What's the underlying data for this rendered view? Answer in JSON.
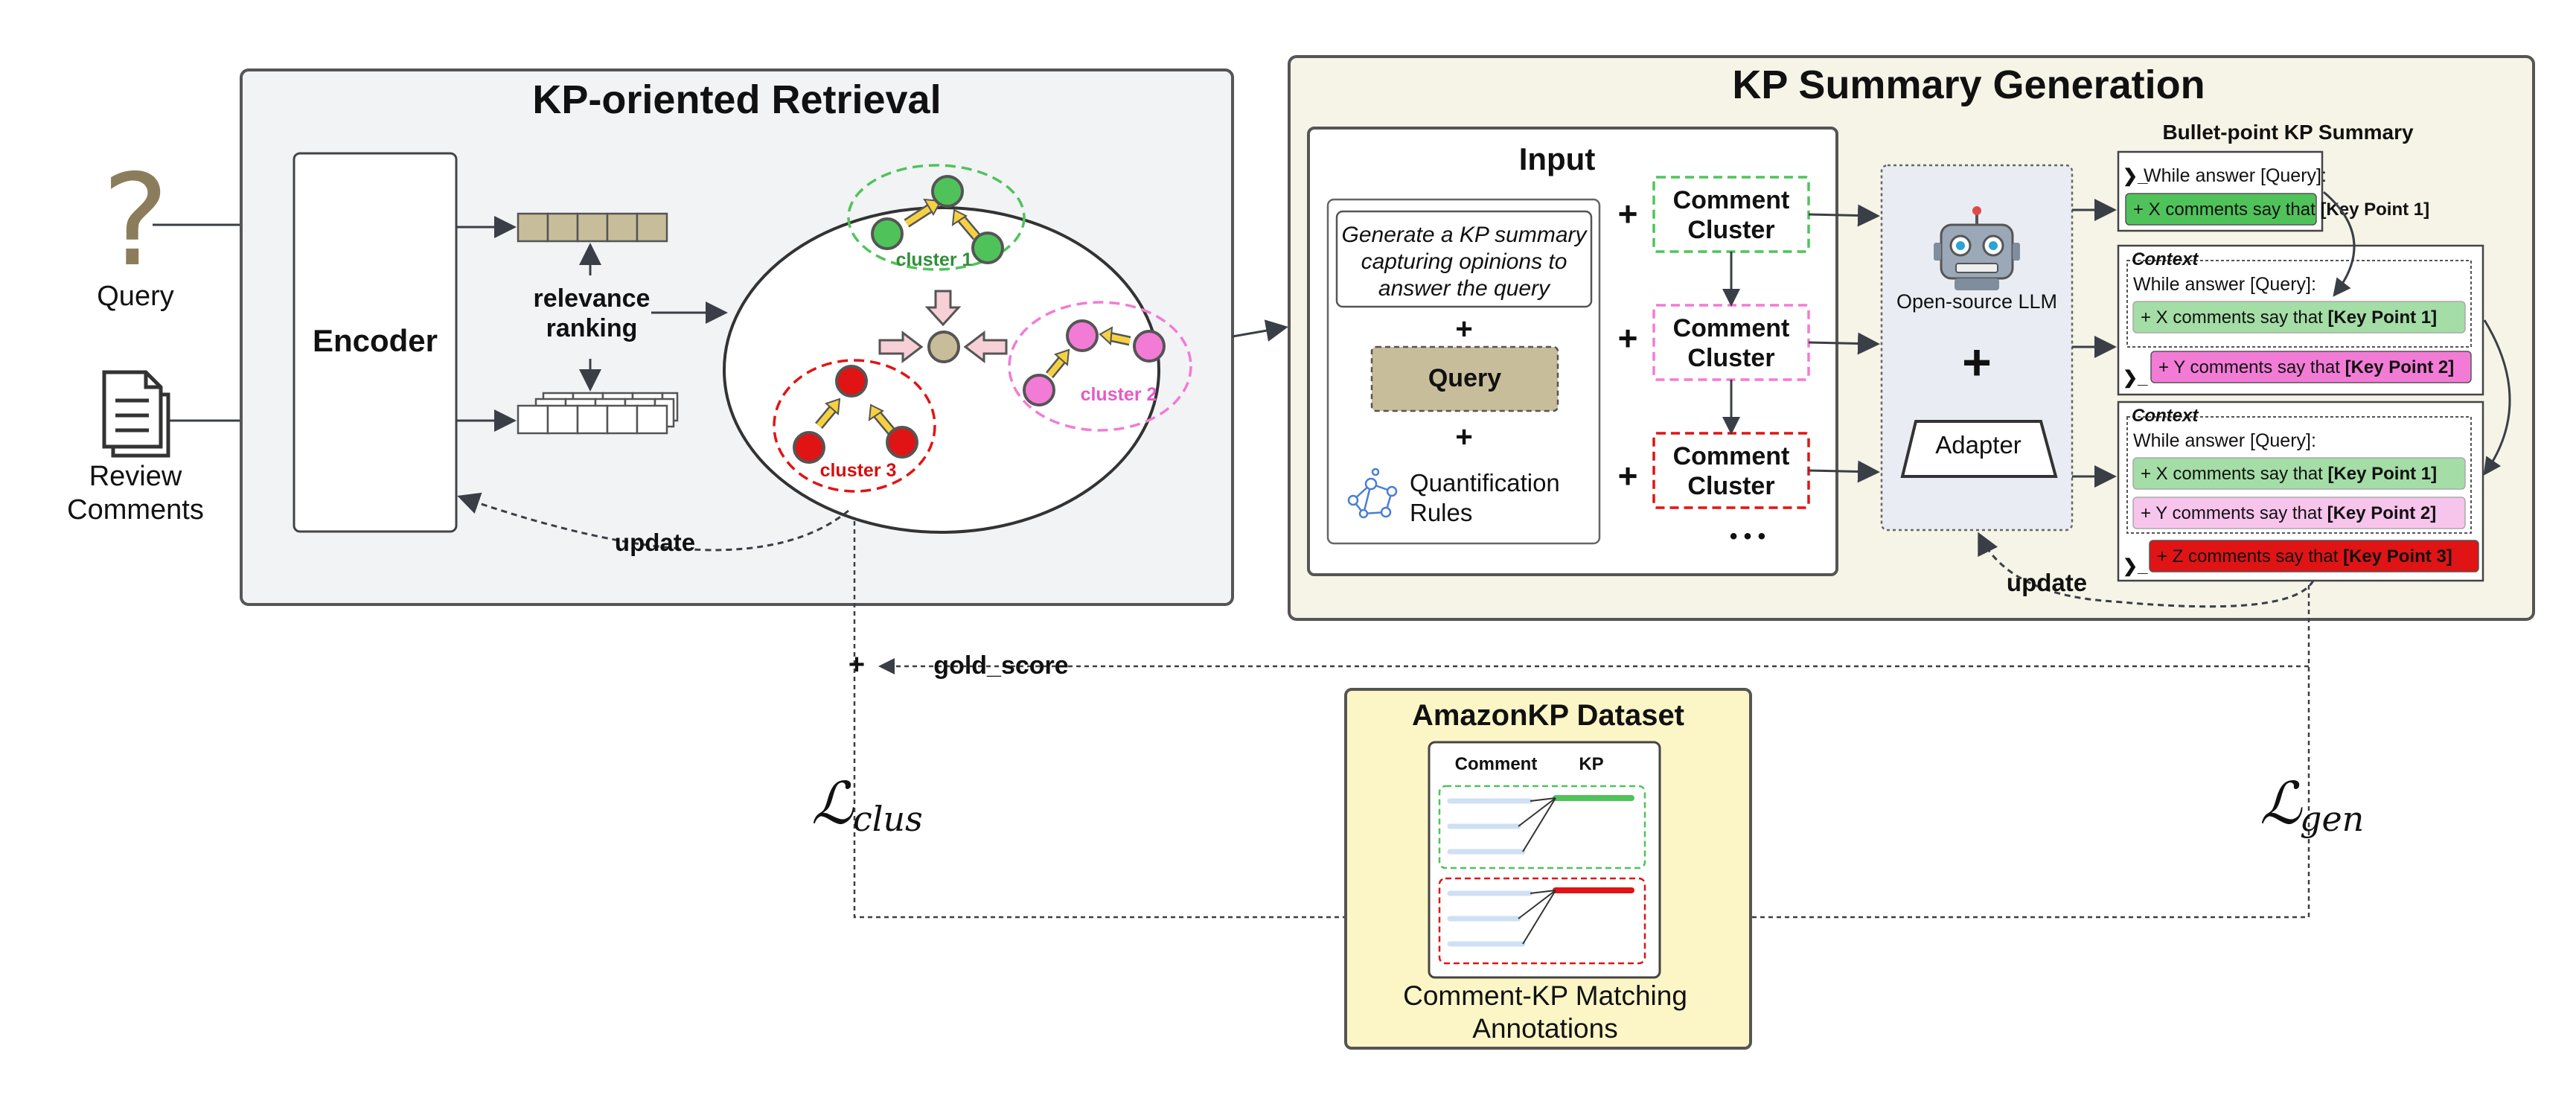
{
  "colors": {
    "panel_gray": "#f2f3f5",
    "panel_cream": "#f6f4e6",
    "panel_yellow": "#fcf6c6",
    "query_tan": "#c8bd9a",
    "green": "#4fc35a",
    "pink": "#f27bd6",
    "red": "#e01414",
    "arrow": "#3a3f47"
  },
  "icons": {
    "query": "question-mark-icon",
    "review": "document-icon",
    "llm": "robot-icon",
    "rules": "network-icon"
  },
  "left_inputs": {
    "query": "Query",
    "review_line1": "Review",
    "review_line2": "Comments"
  },
  "retrieval": {
    "title": "KP-oriented Retrieval",
    "encoder": "Encoder",
    "ranking_line1": "relevance",
    "ranking_line2": "ranking",
    "update": "update",
    "cluster1": "cluster 1",
    "cluster2": "cluster 2",
    "cluster3": "cluster 3"
  },
  "generation": {
    "title": "KP Summary Generation",
    "input_title": "Input",
    "instruction_line1": "Generate a KP summary",
    "instruction_line2": "capturing opinions to",
    "instruction_line3": "answer the query",
    "plus": "+",
    "query": "Query",
    "rules_line1": "Quantification",
    "rules_line2": "Rules",
    "comment": "Comment",
    "cluster": "Cluster",
    "ellipsis": "• • •",
    "llm": "Open-source LLM",
    "adapter": "Adapter",
    "update": "update",
    "summary_title": "Bullet-point KP Summary",
    "context": "Context",
    "while_answer": "While answer [Query]:",
    "prompt": "❯_",
    "kp1_prefix": "+ X comments say that ",
    "kp1_bold": "[Key Point 1]",
    "kp2_prefix": "+ Y comments say that ",
    "kp2_bold": "[Key Point 2]",
    "kp3_prefix": "+ Z comments say that ",
    "kp3_bold": "[Key Point 3]"
  },
  "loss": {
    "gold_score": "gold_score",
    "plus": "+",
    "clus_main": "ℒ",
    "clus_sub": "clus",
    "gen_main": "ℒ",
    "gen_sub": "gen"
  },
  "dataset": {
    "title": "AmazonKP Dataset",
    "col_comment": "Comment",
    "col_kp": "KP",
    "caption_line1": "Comment-KP Matching",
    "caption_line2": "Annotations"
  }
}
